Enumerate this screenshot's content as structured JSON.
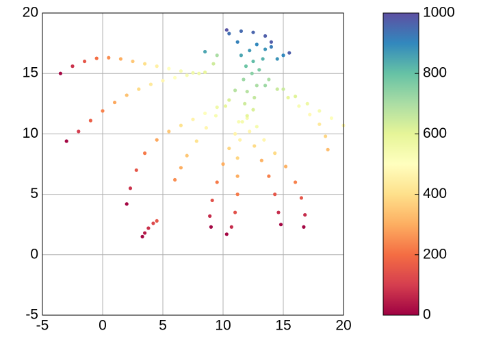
{
  "chart_data": {
    "type": "scatter",
    "xlim": [
      -5,
      20
    ],
    "ylim": [
      -5,
      20
    ],
    "xticks": [
      -5,
      0,
      5,
      10,
      15,
      20
    ],
    "yticks": [
      -5,
      0,
      5,
      10,
      15,
      20
    ],
    "grid": true,
    "colormap": [
      "#9e0142",
      "#d53e4f",
      "#f46d43",
      "#fdae61",
      "#fee08b",
      "#ffffbf",
      "#e6f598",
      "#abdda4",
      "#66c2a5",
      "#3288bd",
      "#5e4fa2"
    ],
    "colorbar": {
      "lim": [
        0,
        1000
      ],
      "ticks": [
        0,
        200,
        400,
        600,
        800,
        1000
      ]
    },
    "x": [
      -3.5,
      -2.5,
      -1.5,
      -0.5,
      0.5,
      1.5,
      2.5,
      3.5,
      4.5,
      5.5,
      6.5,
      7.5,
      8.5,
      9.2,
      9.5,
      -3,
      -2,
      -1,
      0,
      1,
      2,
      3,
      4,
      5,
      6,
      7,
      8,
      2,
      2.3,
      2.8,
      3.5,
      4.5,
      5.5,
      6.5,
      7.5,
      8.5,
      9.5,
      10.5,
      11,
      3.3,
      3.5,
      3.8,
      4.2,
      4.5,
      6,
      6.5,
      7,
      7.8,
      8.6,
      9.4,
      10.2,
      9,
      8.9,
      9.1,
      9.5,
      10,
      10.5,
      11,
      11.3,
      10.3,
      10.7,
      11,
      11.2,
      11.2,
      11.2,
      11.4,
      11.6,
      14.8,
      14.6,
      14.3,
      13.8,
      13.2,
      12.6,
      12.2,
      12,
      16.7,
      16.8,
      16.5,
      16,
      15.2,
      14.3,
      13.4,
      12.8,
      18.7,
      18.5,
      18,
      17.2,
      16.3,
      15.4,
      14.5,
      13.8,
      20,
      19,
      18,
      17,
      16,
      15,
      12,
      12.5,
      11.8,
      12.6,
      12,
      12.8,
      11.7,
      12.4,
      13,
      11.9,
      12.5,
      13.3,
      11.5,
      12.2,
      13.5,
      12.8,
      11.2,
      14,
      10.5,
      11.5,
      12.5,
      13.5,
      14,
      10.3,
      15,
      15.5,
      14.5,
      8.5,
      13.5
    ],
    "values": [
      15,
      15.6,
      16,
      16.25,
      16.3,
      16.2,
      16,
      15.8,
      15.6,
      15.4,
      15.2,
      15.05,
      15.1,
      15.8,
      16.5,
      9.4,
      10.2,
      11.1,
      11.9,
      12.6,
      13.2,
      13.7,
      14.1,
      14.4,
      14.65,
      14.85,
      15,
      4.2,
      5.5,
      7,
      8.4,
      9.5,
      10.2,
      10.7,
      11.2,
      11.7,
      12.2,
      12.8,
      13.6,
      1.5,
      1.8,
      2.2,
      2.6,
      2.8,
      6.2,
      7.2,
      8.2,
      9.4,
      10.5,
      11.5,
      12.3,
      2.3,
      3.2,
      4.5,
      6,
      7.5,
      8.8,
      10,
      11,
      1.7,
      2.3,
      3.5,
      5,
      6.5,
      8,
      9.5,
      11,
      2.5,
      3.5,
      5,
      6.5,
      7.8,
      9,
      10.2,
      11.3,
      2.3,
      3.3,
      4.7,
      6,
      7.3,
      8.4,
      9.5,
      10.6,
      8.7,
      9.8,
      10.8,
      11.6,
      12.3,
      13,
      13.7,
      14.5,
      10.7,
      11.3,
      11.9,
      12.5,
      13.1,
      13.7,
      11.5,
      12,
      12.5,
      13,
      13.5,
      14,
      14.5,
      15,
      15.3,
      15.6,
      16,
      16.2,
      16.5,
      16.9,
      17,
      17.4,
      17.6,
      17.2,
      18.3,
      18.5,
      18.4,
      18.1,
      17.6,
      18.6,
      16.5,
      16.7,
      16.2,
      16.8,
      14
    ],
    "color_values": [
      10,
      80,
      150,
      200,
      250,
      300,
      350,
      400,
      450,
      500,
      530,
      560,
      590,
      640,
      700,
      10,
      100,
      170,
      230,
      290,
      340,
      390,
      430,
      470,
      500,
      530,
      560,
      10,
      80,
      150,
      220,
      290,
      350,
      410,
      460,
      510,
      560,
      620,
      680,
      10,
      40,
      80,
      120,
      150,
      250,
      300,
      350,
      410,
      470,
      530,
      590,
      10,
      70,
      140,
      220,
      300,
      380,
      460,
      530,
      10,
      70,
      140,
      220,
      300,
      380,
      460,
      540,
      10,
      70,
      150,
      230,
      310,
      390,
      470,
      540,
      10,
      70,
      150,
      230,
      310,
      390,
      470,
      540,
      330,
      380,
      430,
      480,
      530,
      590,
      650,
      700,
      480,
      510,
      540,
      570,
      610,
      650,
      600,
      620,
      640,
      660,
      680,
      700,
      720,
      750,
      770,
      790,
      810,
      830,
      850,
      870,
      880,
      900,
      910,
      920,
      940,
      950,
      960,
      970,
      975,
      990,
      900,
      970,
      880,
      850,
      720
    ]
  }
}
